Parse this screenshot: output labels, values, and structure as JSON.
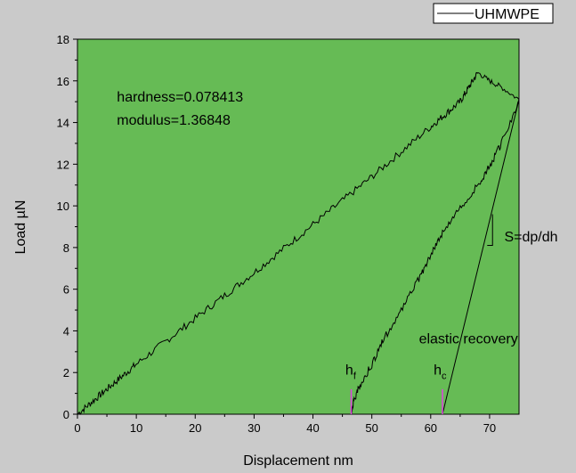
{
  "chart_data": {
    "type": "line",
    "title": "",
    "xlabel": "Displacement nm",
    "ylabel": "Load µN",
    "xlim": [
      0,
      75
    ],
    "ylim": [
      0,
      18
    ],
    "x_ticks": [
      0,
      10,
      20,
      30,
      40,
      50,
      60,
      70
    ],
    "y_ticks": [
      0,
      2,
      4,
      6,
      8,
      10,
      12,
      14,
      16,
      18
    ],
    "grid": false,
    "legend": {
      "position": "top-right",
      "entries": [
        "UHMWPE"
      ]
    },
    "plot_background": "#66bb55",
    "series": [
      {
        "name": "UHMWPE",
        "color": "#000000",
        "loading": {
          "x": [
            0,
            5,
            10,
            20,
            30,
            40,
            50,
            60,
            65,
            68
          ],
          "y": [
            0,
            1.2,
            2.4,
            4.6,
            6.8,
            9.1,
            11.4,
            13.8,
            15.0,
            16.4
          ]
        },
        "hold": {
          "x": [
            68,
            70,
            72,
            75
          ],
          "y": [
            16.4,
            16.0,
            15.7,
            15.1
          ]
        },
        "unloading": {
          "x": [
            75,
            72,
            70,
            68,
            65,
            62,
            60,
            58,
            55,
            52,
            50,
            48,
            47,
            46.5
          ],
          "y": [
            15.1,
            13.0,
            11.9,
            11.0,
            9.9,
            8.7,
            7.7,
            6.5,
            5.0,
            3.6,
            2.4,
            1.4,
            0.7,
            0
          ]
        }
      }
    ],
    "tangent_line": {
      "x": [
        62,
        75
      ],
      "y": [
        0,
        15.1
      ]
    },
    "slope_triangle": {
      "x_from": 69.6,
      "x_to": 70.5,
      "y_from": 8.1,
      "y_to": 9.6
    },
    "annotations": [
      {
        "text": "hardness=0.078413",
        "x": 6.7,
        "y": 15.0
      },
      {
        "text": "modulus=1.36848",
        "x": 6.7,
        "y": 13.9
      },
      {
        "text": "S=dp/dh",
        "x": 72.5,
        "y": 8.3
      },
      {
        "text": "elastic recovery",
        "x": 58.0,
        "y": 3.4
      },
      {
        "text": "h",
        "sub": "f",
        "x": 45.5,
        "y": 1.9,
        "marker_x": 46.5,
        "marker_y_range": [
          0,
          1.2
        ],
        "marker_color": "#e040e0"
      },
      {
        "text": "h",
        "sub": "c",
        "x": 60.5,
        "y": 1.9,
        "marker_x": 62,
        "marker_y_range": [
          0,
          1.2
        ],
        "marker_color": "#e040e0"
      }
    ]
  }
}
